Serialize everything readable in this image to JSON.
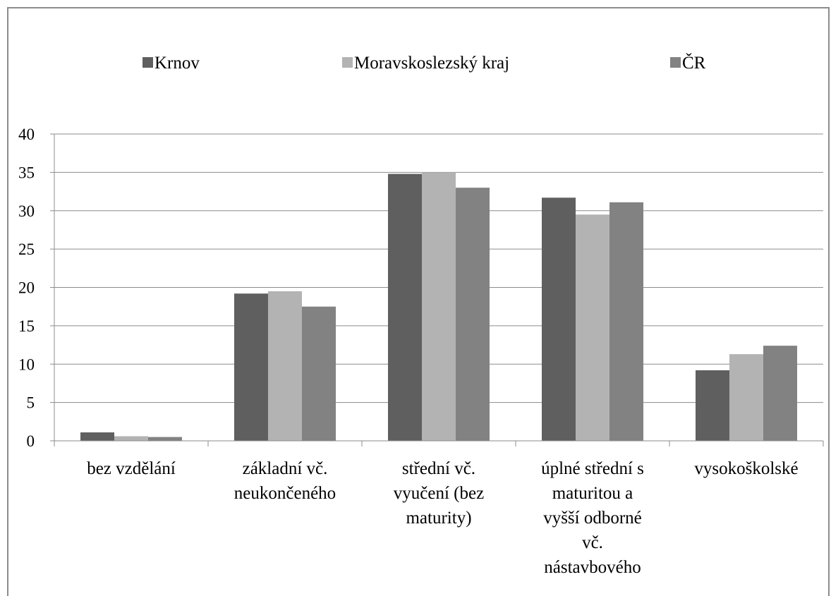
{
  "chart_data": {
    "type": "bar",
    "categories": [
      [
        "bez vzdělání"
      ],
      [
        "základní vč.",
        "neukončeného"
      ],
      [
        "střední vč.",
        "vyučení (bez",
        "maturity)"
      ],
      [
        "úplné střední s",
        "maturitou a",
        "vyšší odborné",
        "vč.",
        "nástavbového"
      ],
      [
        "vysokoškolské"
      ]
    ],
    "series": [
      {
        "name": "Krnov",
        "color": "#5f5f5f",
        "values": [
          1.1,
          19.2,
          34.8,
          31.7,
          9.2
        ]
      },
      {
        "name": "Moravskoslezský kraj",
        "color": "#b3b3b3",
        "values": [
          0.6,
          19.5,
          35.0,
          29.5,
          11.3
        ]
      },
      {
        "name": "ČR",
        "color": "#828282",
        "values": [
          0.5,
          17.5,
          33.0,
          31.1,
          12.4
        ]
      }
    ],
    "ylim": [
      0,
      40
    ],
    "yticks": [
      "0",
      "5",
      "10",
      "15",
      "20",
      "25",
      "30",
      "35",
      "40"
    ],
    "grid": true,
    "legend_position": "top"
  }
}
